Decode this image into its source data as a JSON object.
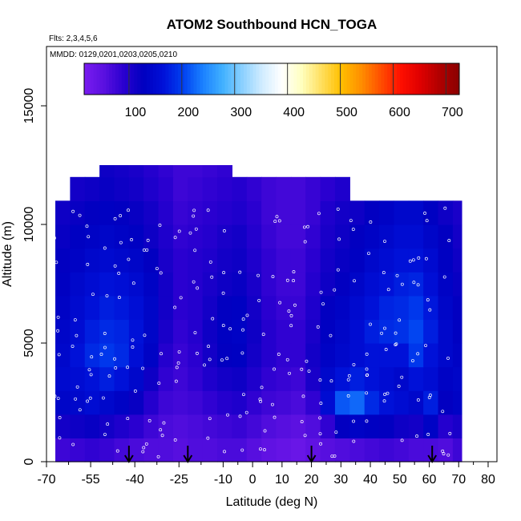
{
  "chart_data": {
    "type": "heatmap",
    "title": "ATOM2 Southbound HCN_TOGA",
    "flights_note": "Flts: 2,3,4,5,6",
    "dates_note": "MMDD: 0129,0201,0203,0205,0210",
    "xlabel": "Latitude (deg N)",
    "ylabel": "Altitude (m)",
    "xlim": [
      -70,
      83
    ],
    "ylim": [
      0,
      17500
    ],
    "x_ticks": [
      -70,
      -55,
      -40,
      -25,
      -10,
      0,
      10,
      20,
      30,
      40,
      50,
      60,
      70,
      80
    ],
    "x_tick_labels": [
      "-70",
      "-55",
      "-40",
      "-25",
      "-10",
      "0",
      "10",
      "20",
      "30",
      "40",
      "50",
      "60",
      "70",
      "80"
    ],
    "x_minor_ticks": [
      -62.5,
      -47.5,
      -32.5,
      -17.5,
      -5,
      5,
      15,
      25,
      35,
      45,
      55,
      65,
      75
    ],
    "y_ticks": [
      0,
      5000,
      10000,
      15000
    ],
    "y_tick_labels": [
      "0",
      "5000",
      "10000",
      "15000"
    ],
    "colorbar": {
      "range": [
        0,
        710
      ],
      "ticks": [
        100,
        200,
        300,
        400,
        500,
        600,
        700
      ],
      "tick_labels": [
        "100",
        "200",
        "300",
        "400",
        "500",
        "600",
        "700"
      ],
      "colors": [
        "#7a1cf0",
        "#5a10e0",
        "#2a00d0",
        "#0000c0",
        "#0010d8",
        "#0040f0",
        "#1a80ff",
        "#40b0ff",
        "#8ad0ff",
        "#d0ecff",
        "#ffffff",
        "#ffffc0",
        "#ffe060",
        "#ffc000",
        "#ff9000",
        "#ff5000",
        "#ff1000",
        "#e00000",
        "#b00000",
        "#8a0000"
      ]
    },
    "latitude_band_edges": [
      -67,
      -62,
      -57,
      -52,
      -47,
      -42,
      -37,
      -32,
      -27,
      -22,
      -17,
      -12,
      -7,
      -2,
      3,
      8,
      13,
      18,
      23,
      28,
      33,
      38,
      43,
      48,
      53,
      58,
      63,
      68,
      71
    ],
    "altitude_band_edges": [
      0,
      1000,
      2000,
      3000,
      4000,
      5000,
      6000,
      7000,
      8000,
      9000,
      10000,
      11000,
      12000,
      12500
    ],
    "hcn_values_pptv": [
      [
        60,
        65,
        70,
        65,
        55,
        50,
        45,
        45,
        40,
        45,
        45,
        50,
        50,
        40,
        30,
        25,
        20,
        30,
        40,
        45,
        50,
        55,
        60,
        55,
        50,
        50,
        45,
        60
      ],
      [
        95,
        100,
        105,
        95,
        85,
        75,
        60,
        50,
        45,
        50,
        55,
        60,
        65,
        55,
        45,
        40,
        35,
        45,
        70,
        110,
        120,
        115,
        110,
        100,
        95,
        120,
        80,
        90
      ],
      [
        125,
        130,
        140,
        130,
        120,
        105,
        80,
        60,
        55,
        60,
        70,
        80,
        85,
        70,
        60,
        55,
        50,
        70,
        140,
        200,
        210,
        170,
        150,
        140,
        130,
        160,
        110,
        120
      ],
      [
        135,
        140,
        150,
        160,
        150,
        130,
        100,
        70,
        60,
        70,
        85,
        95,
        100,
        85,
        70,
        65,
        60,
        90,
        130,
        150,
        160,
        150,
        140,
        130,
        150,
        140,
        120,
        125
      ],
      [
        130,
        150,
        170,
        180,
        170,
        145,
        120,
        80,
        65,
        75,
        95,
        110,
        115,
        95,
        80,
        70,
        70,
        95,
        120,
        130,
        140,
        150,
        150,
        150,
        180,
        150,
        130,
        120
      ],
      [
        125,
        140,
        160,
        170,
        165,
        150,
        125,
        90,
        70,
        80,
        100,
        115,
        120,
        100,
        80,
        70,
        70,
        90,
        115,
        125,
        140,
        160,
        170,
        175,
        190,
        160,
        130,
        115
      ],
      [
        120,
        135,
        150,
        160,
        155,
        145,
        125,
        95,
        75,
        80,
        95,
        110,
        115,
        95,
        75,
        65,
        65,
        85,
        110,
        120,
        135,
        150,
        165,
        170,
        180,
        155,
        125,
        110
      ],
      [
        115,
        130,
        140,
        150,
        145,
        135,
        120,
        95,
        75,
        80,
        90,
        100,
        105,
        90,
        70,
        60,
        60,
        80,
        100,
        110,
        125,
        140,
        150,
        160,
        165,
        145,
        120,
        105
      ],
      [
        110,
        120,
        130,
        135,
        130,
        125,
        110,
        90,
        75,
        80,
        85,
        95,
        100,
        85,
        70,
        60,
        60,
        75,
        95,
        105,
        115,
        130,
        140,
        150,
        150,
        135,
        115,
        100
      ],
      [
        105,
        115,
        120,
        125,
        120,
        115,
        100,
        85,
        70,
        75,
        80,
        90,
        95,
        80,
        65,
        55,
        55,
        70,
        90,
        100,
        110,
        120,
        130,
        140,
        140,
        125,
        110,
        95
      ],
      [
        100,
        105,
        110,
        115,
        110,
        105,
        95,
        80,
        65,
        70,
        75,
        80,
        85,
        75,
        60,
        55,
        55,
        65,
        85,
        95,
        100,
        110,
        120,
        130,
        130,
        115,
        100,
        90
      ],
      [
        null,
        95,
        100,
        105,
        100,
        95,
        85,
        75,
        60,
        65,
        70,
        75,
        80,
        70,
        60,
        55,
        55,
        65,
        75,
        85,
        null,
        null,
        null,
        null,
        null,
        null,
        null,
        null
      ],
      [
        null,
        null,
        null,
        100,
        95,
        90,
        80,
        70,
        60,
        60,
        65,
        70,
        null,
        null,
        null,
        null,
        null,
        null,
        null,
        null,
        null,
        null,
        null,
        null,
        null,
        null,
        null,
        null
      ]
    ],
    "arrow_latitudes": [
      -42,
      -22,
      20,
      61
    ],
    "colors": {
      "bar_outline": "#000000",
      "axes": "#000000",
      "samples": "#ffffff"
    }
  }
}
